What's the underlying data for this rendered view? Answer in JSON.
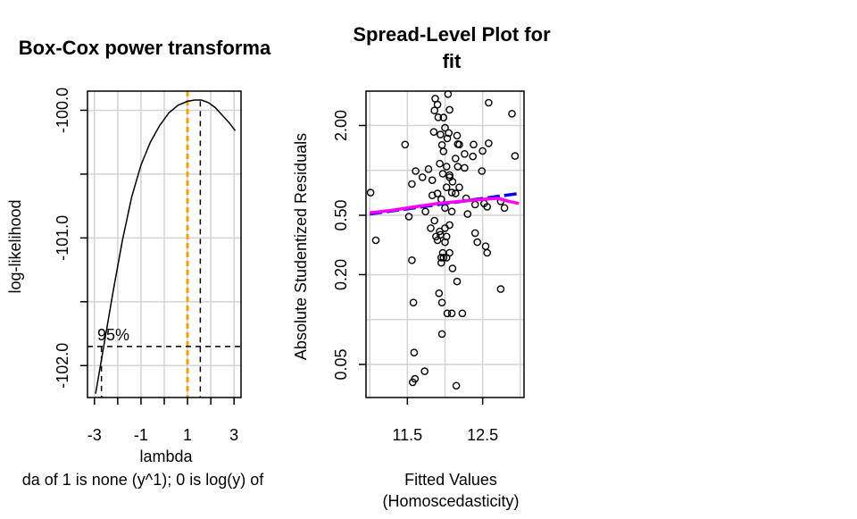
{
  "chart_data": [
    {
      "type": "line",
      "title": "Box-Cox power transforma",
      "xlabel": "lambda",
      "ylabel": "log-likelihood",
      "sub": "da of 1 is none (y^1); 0 is log(y) of",
      "xlim": [
        -3.3,
        3.3
      ],
      "ylim": [
        -102.25,
        -99.85
      ],
      "xticks": [
        -3,
        -2,
        -1,
        0,
        1,
        2,
        3
      ],
      "xticklabels": [
        "-3",
        "",
        "-1",
        "",
        "1",
        "",
        "3"
      ],
      "yticks": [
        -102.0,
        -101.5,
        -101.0,
        -100.5,
        -100.0
      ],
      "yticklabels": [
        "-102.0",
        "",
        "-101.0",
        "",
        "-100.0"
      ],
      "grid": true,
      "ci_label": "95%",
      "ci_threshold": -101.85,
      "lambda_hat": 1.55,
      "ci_lower": -2.7,
      "reference_lambda": 1,
      "reference_color": "#f5a300",
      "curve": {
        "x": [
          -2.95,
          -2.6,
          -2.2,
          -1.8,
          -1.4,
          -1.0,
          -0.6,
          -0.2,
          0.2,
          0.6,
          1.0,
          1.3,
          1.6,
          1.9,
          2.2,
          2.5,
          2.8,
          3.05
        ],
        "y": [
          -102.22,
          -101.85,
          -101.42,
          -101.02,
          -100.68,
          -100.43,
          -100.25,
          -100.12,
          -100.02,
          -99.96,
          -99.93,
          -99.92,
          -99.92,
          -99.94,
          -99.98,
          -100.04,
          -100.1,
          -100.16
        ]
      }
    },
    {
      "type": "scatter",
      "title": "Spread-Level Plot for fit",
      "title_lines": [
        "Spread-Level Plot for",
        "fit"
      ],
      "xlabel": "Fitted Values",
      "sub": "(Homoscedasticity)",
      "ylabel": "Absolute Studentized Residuals",
      "ylog": true,
      "xlim": [
        10.95,
        13.05
      ],
      "ylim": [
        0.03,
        3.4
      ],
      "xticks": [
        11.5,
        12.5
      ],
      "xticklabels": [
        "11.5",
        "12.5"
      ],
      "xgrid": [
        11.0,
        11.5,
        12.0,
        12.5,
        13.0
      ],
      "yticks": [
        0.05,
        0.2,
        0.5,
        2.0
      ],
      "yticklabels": [
        "0.05",
        "0.20",
        "0.50",
        "2.00"
      ],
      "ygrid": [
        0.05,
        0.1,
        0.2,
        0.5,
        1.0,
        2.0
      ],
      "grid": true,
      "points": {
        "x": [
          11.87,
          11.9,
          11.98,
          12.04,
          11.86,
          11.91,
          12.06,
          12.58,
          12.89,
          12.0,
          12.16,
          12.05,
          11.85,
          11.94,
          12.03,
          12.38,
          12.17,
          12.19,
          12.5,
          11.47,
          11.96,
          12.58,
          11.98,
          12.26,
          12.37,
          12.93,
          12.14,
          11.93,
          12.02,
          12.17,
          12.26,
          11.61,
          12.06,
          12.49,
          12.06,
          11.78,
          11.7,
          11.97,
          11.56,
          12.1,
          12.19,
          12.02,
          11.83,
          12.09,
          12.14,
          11.9,
          11.01,
          11.83,
          12.28,
          12.4,
          12.52,
          11.95,
          12.0,
          12.3,
          12.56,
          12.74,
          12.09,
          11.74,
          12.79,
          11.52,
          11.86,
          11.81,
          12.06,
          12.0,
          11.93,
          12.4,
          11.94,
          12.02,
          11.08,
          12.0,
          12.43,
          11.88,
          11.9,
          12.54,
          12.56,
          11.97,
          12.06,
          12.02,
          11.95,
          11.98,
          11.56,
          11.95,
          12.1,
          12.16,
          12.74,
          11.92,
          11.96,
          11.58,
          12.03,
          12.09,
          12.23,
          11.96,
          11.59,
          11.73,
          11.6,
          11.57,
          12.15
        ],
        "y": [
          3.03,
          2.76,
          2.26,
          3.25,
          2.52,
          2.27,
          2.55,
          2.84,
          2.4,
          1.93,
          1.71,
          1.78,
          1.81,
          1.74,
          1.64,
          1.49,
          1.5,
          1.49,
          1.35,
          1.49,
          1.48,
          1.52,
          1.34,
          1.29,
          1.24,
          1.25,
          1.2,
          1.11,
          1.06,
          1.06,
          1.04,
          0.99,
          0.93,
          0.99,
          0.9,
          1.02,
          0.9,
          0.95,
          0.81,
          0.84,
          0.77,
          0.77,
          0.86,
          0.71,
          0.7,
          0.7,
          0.71,
          0.68,
          0.65,
          0.59,
          0.6,
          0.64,
          0.56,
          0.51,
          0.57,
          0.62,
          0.53,
          0.53,
          0.56,
          0.49,
          0.46,
          0.41,
          0.43,
          0.41,
          0.39,
          0.38,
          0.37,
          0.36,
          0.34,
          0.33,
          0.33,
          0.36,
          0.34,
          0.31,
          0.28,
          0.28,
          0.28,
          0.26,
          0.26,
          0.26,
          0.25,
          0.24,
          0.22,
          0.18,
          0.16,
          0.15,
          0.13,
          0.13,
          0.11,
          0.11,
          0.11,
          0.08,
          0.06,
          0.045,
          0.04,
          0.038,
          0.036
        ]
      },
      "fit_line": {
        "color": "#0000ee",
        "x": [
          11.0,
          12.98
        ],
        "y": [
          0.51,
          0.7
        ]
      },
      "smooth_line": {
        "color": "#ff00ff",
        "x": [
          11.0,
          11.3,
          11.6,
          11.9,
          12.2,
          12.5,
          12.7,
          12.85,
          12.98
        ],
        "y": [
          0.52,
          0.54,
          0.57,
          0.6,
          0.62,
          0.64,
          0.65,
          0.62,
          0.6
        ]
      }
    }
  ]
}
